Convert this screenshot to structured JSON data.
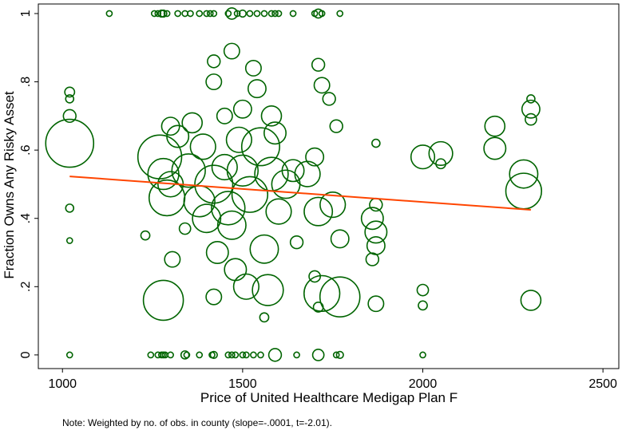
{
  "chart_data": {
    "type": "scatter",
    "xlabel": "Price of United Healthcare Medigap Plan F",
    "ylabel": "Fraction Owns Any Risky Asset",
    "note": "Note: Weighted by no. of obs. in county (slope=-.0001, t=-2.01).",
    "color": "#006400",
    "xlim": [
      933,
      2544
    ],
    "ylim": [
      -0.04,
      1.028
    ],
    "xticks": [
      1000,
      1500,
      2000,
      2500
    ],
    "yticks": [
      0,
      {
        "value": 0.2,
        "label": ".2"
      },
      {
        "value": 0.4,
        "label": ".4"
      },
      {
        "value": 0.6,
        "label": ".6"
      },
      {
        "value": 0.8,
        "label": ".8"
      },
      1
    ],
    "x": [
      1130,
      1255,
      1265,
      1275,
      1280,
      1290,
      1320,
      1340,
      1355,
      1380,
      1400,
      1410,
      1420,
      1460,
      1470,
      1485,
      1500,
      1520,
      1540,
      1560,
      1580,
      1590,
      1600,
      1640,
      1700,
      1710,
      1720,
      1770,
      1020,
      1245,
      1265,
      1275,
      1280,
      1285,
      1300,
      1340,
      1345,
      1380,
      1415,
      1420,
      1460,
      1470,
      1480,
      1500,
      1510,
      1530,
      1550,
      1590,
      1650,
      1710,
      1760,
      1770,
      2000,
      1020,
      1020,
      1020,
      1020,
      1020,
      1020,
      1270,
      1280,
      1290,
      1300,
      1280,
      1305,
      1300,
      1320,
      1350,
      1360,
      1380,
      1390,
      1400,
      1420,
      1420,
      1420,
      1420,
      1430,
      1450,
      1460,
      1470,
      1470,
      1480,
      1490,
      1500,
      1500,
      1510,
      1520,
      1530,
      1540,
      1550,
      1560,
      1560,
      1570,
      1580,
      1590,
      1600,
      1620,
      1640,
      1650,
      1680,
      1700,
      1710,
      1720,
      1710,
      1720,
      1740,
      1750,
      1770,
      1770,
      1760,
      1860,
      1870,
      1870,
      1860,
      1870,
      1870,
      1870,
      2000,
      2000,
      2000,
      2050,
      2050,
      2200,
      2200,
      2280,
      2280,
      2300,
      2300,
      2300,
      2300,
      1700,
      1710,
      1580,
      1450,
      1340,
      1230
    ],
    "y": [
      1,
      1,
      1,
      1,
      1,
      1,
      1,
      1,
      1,
      1,
      1,
      1,
      1,
      1,
      1,
      1,
      1,
      1,
      1,
      1,
      1,
      1,
      1,
      1,
      1,
      1,
      1,
      1,
      0,
      0,
      0,
      0,
      0,
      0,
      0,
      0,
      0,
      0,
      0,
      0,
      0,
      0,
      0,
      0,
      0,
      0,
      0,
      0,
      0,
      0,
      0,
      0,
      0,
      0.62,
      0.77,
      0.7,
      0.75,
      0.43,
      0.335,
      0.58,
      0.53,
      0.46,
      0.5,
      0.16,
      0.28,
      0.67,
      0.64,
      0.54,
      0.68,
      0.45,
      0.61,
      0.4,
      0.5,
      0.17,
      0.8,
      0.86,
      0.3,
      0.55,
      0.43,
      0.89,
      0.38,
      0.25,
      0.63,
      0.54,
      0.72,
      0.2,
      0.47,
      0.84,
      0.78,
      0.61,
      0.31,
      0.11,
      0.19,
      0.53,
      0.65,
      0.42,
      0.5,
      0.54,
      0.33,
      0.53,
      0.58,
      0.42,
      0.18,
      0.85,
      0.79,
      0.75,
      0.44,
      0.17,
      0.34,
      0.67,
      0.4,
      0.36,
      0.32,
      0.28,
      0.15,
      0.44,
      0.62,
      0.19,
      0.145,
      0.58,
      0.59,
      0.56,
      0.67,
      0.605,
      0.53,
      0.48,
      0.72,
      0.69,
      0.75,
      0.16,
      0.23,
      0.14,
      0.7,
      0.7,
      0.37,
      0.35
    ],
    "sizes": [
      2,
      2,
      2,
      3,
      3,
      2,
      2,
      2,
      2,
      2,
      2,
      2,
      2,
      2,
      8,
      2,
      3,
      2,
      2,
      2,
      2,
      2,
      2,
      2,
      2,
      5,
      2,
      2,
      2,
      2,
      2,
      2,
      2,
      2,
      2,
      4,
      2,
      2,
      2,
      3,
      2,
      2,
      2,
      2,
      2,
      2,
      2,
      10,
      2,
      8,
      2,
      3,
      2,
      144,
      6,
      10,
      4,
      4,
      2,
      120,
      60,
      80,
      40,
      100,
      15,
      20,
      30,
      70,
      25,
      60,
      40,
      50,
      90,
      15,
      15,
      10,
      30,
      40,
      70,
      15,
      50,
      30,
      40,
      60,
      20,
      40,
      80,
      15,
      20,
      90,
      50,
      5,
      60,
      70,
      30,
      40,
      50,
      30,
      10,
      40,
      20,
      50,
      80,
      10,
      15,
      10,
      40,
      100,
      20,
      10,
      30,
      30,
      20,
      10,
      15,
      10,
      4,
      8,
      5,
      35,
      35,
      6,
      25,
      30,
      50,
      80,
      20,
      8,
      4,
      25,
      8,
      6,
      25,
      15,
      8,
      5
    ],
    "fit_line": {
      "x": [
        1020,
        2300
      ],
      "y": [
        0.523,
        0.425
      ],
      "color": "#ff4500"
    }
  }
}
